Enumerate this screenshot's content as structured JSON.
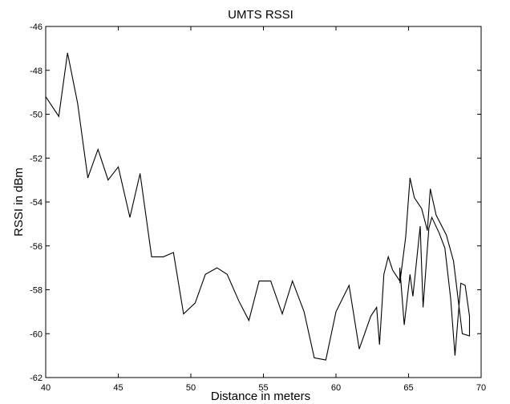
{
  "chart_data": {
    "type": "line",
    "title": "UMTS RSSI",
    "xlabel": "Distance in meters",
    "ylabel": "RSSI in dBm",
    "xlim": [
      40,
      70
    ],
    "ylim": [
      -62,
      -46
    ],
    "xticks": [
      "40",
      "45",
      "50",
      "55",
      "60",
      "65",
      "70"
    ],
    "yticks": [
      "-46",
      "-48",
      "-50",
      "-52",
      "-54",
      "-56",
      "-58",
      "-60",
      "-62"
    ],
    "grid": false,
    "series": [
      {
        "color": "#000000",
        "points": [
          [
            40.0,
            -49.2
          ],
          [
            40.9,
            -50.1
          ],
          [
            41.5,
            -47.2
          ],
          [
            42.2,
            -49.5
          ],
          [
            42.9,
            -52.9
          ],
          [
            43.6,
            -51.6
          ],
          [
            44.3,
            -53.0
          ],
          [
            45.0,
            -52.4
          ],
          [
            45.8,
            -54.7
          ],
          [
            46.5,
            -52.7
          ],
          [
            47.3,
            -56.5
          ],
          [
            48.1,
            -56.5
          ],
          [
            48.8,
            -56.3
          ],
          [
            49.5,
            -59.1
          ],
          [
            50.3,
            -58.6
          ],
          [
            51.0,
            -57.3
          ],
          [
            51.8,
            -57.0
          ],
          [
            52.5,
            -57.3
          ],
          [
            53.3,
            -58.5
          ],
          [
            54.0,
            -59.4
          ],
          [
            54.7,
            -57.6
          ],
          [
            55.5,
            -57.6
          ],
          [
            56.3,
            -59.1
          ],
          [
            57.0,
            -57.6
          ],
          [
            57.8,
            -59.0
          ],
          [
            58.5,
            -61.1
          ],
          [
            59.3,
            -61.2
          ],
          [
            60.0,
            -59.0
          ],
          [
            60.9,
            -57.8
          ],
          [
            61.6,
            -60.7
          ],
          [
            62.4,
            -59.2
          ],
          [
            62.8,
            -58.8
          ],
          [
            63.0,
            -60.5
          ],
          [
            63.3,
            -57.3
          ],
          [
            63.6,
            -56.5
          ],
          [
            63.9,
            -57.1
          ],
          [
            64.4,
            -57.6
          ],
          [
            64.4,
            -57.0
          ],
          [
            64.7,
            -59.6
          ],
          [
            65.1,
            -57.3
          ],
          [
            65.3,
            -58.3
          ],
          [
            65.8,
            -55.1
          ],
          [
            66.0,
            -58.8
          ],
          [
            66.4,
            -55.2
          ],
          [
            66.6,
            -54.7
          ],
          [
            67.1,
            -55.4
          ],
          [
            67.5,
            -56.1
          ],
          [
            67.9,
            -58.4
          ],
          [
            68.2,
            -61.0
          ],
          [
            68.6,
            -57.7
          ],
          [
            68.9,
            -57.8
          ],
          [
            69.2,
            -59.2
          ],
          [
            69.2,
            -60.1
          ],
          [
            68.7,
            -60.0
          ],
          [
            68.1,
            -56.7
          ],
          [
            67.6,
            -55.5
          ],
          [
            66.9,
            -54.6
          ],
          [
            66.5,
            -53.4
          ],
          [
            66.3,
            -55.3
          ],
          [
            65.9,
            -54.3
          ],
          [
            65.4,
            -53.8
          ],
          [
            65.1,
            -52.9
          ],
          [
            64.8,
            -55.6
          ],
          [
            64.4,
            -57.7
          ]
        ]
      }
    ]
  }
}
